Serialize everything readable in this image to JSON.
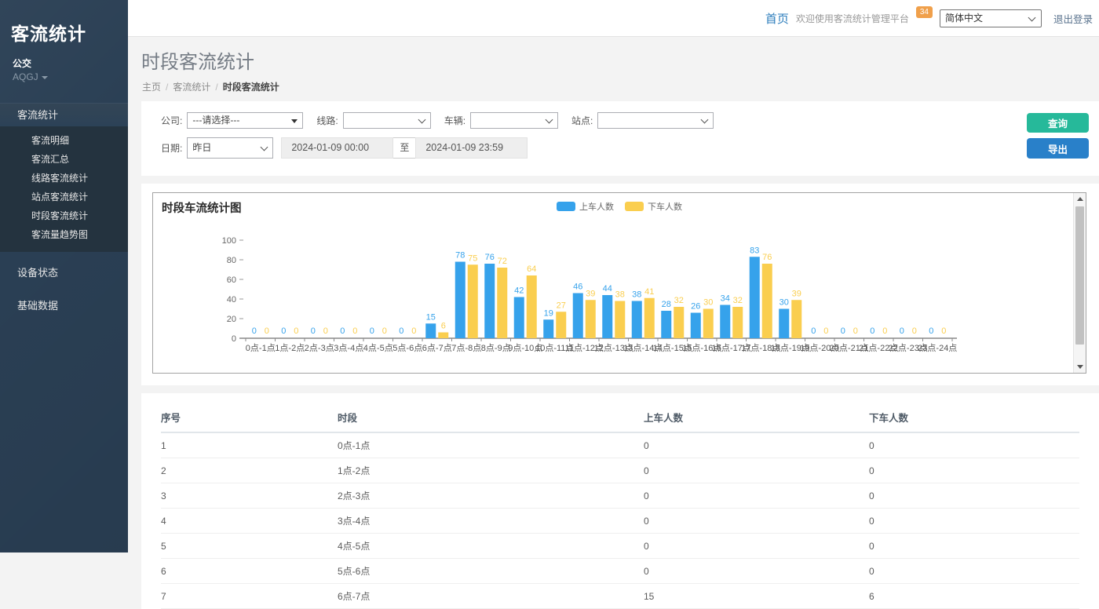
{
  "app": {
    "brand": "客流统计",
    "org": "公交",
    "org_code": "AQGJ"
  },
  "header": {
    "home": "首页",
    "welcome": "欢迎使用客流统计管理平台",
    "badge": "34",
    "language": "简体中文",
    "logout": "退出登录"
  },
  "sidebar": {
    "parent": {
      "label": "客流统计",
      "children": [
        "客流明细",
        "客流汇总",
        "线路客流统计",
        "站点客流统计",
        "时段客流统计",
        "客流量趋势图"
      ]
    },
    "roots": [
      "设备状态",
      "基础数据"
    ]
  },
  "page": {
    "title": "时段客流统计",
    "breadcrumb": [
      "主页",
      "客流统计",
      "时段客流统计"
    ]
  },
  "filters": {
    "company_label": "公司:",
    "company_value": "---请选择---",
    "line_label": "线路:",
    "line_value": "",
    "vehicle_label": "车辆:",
    "vehicle_value": "",
    "station_label": "站点:",
    "station_value": "",
    "date_label": "日期:",
    "date_preset": "昨日",
    "date_from": "2024-01-09 00:00",
    "date_separator": "至",
    "date_to": "2024-01-09 23:59",
    "query_button": "查询",
    "export_button": "导出"
  },
  "chart_data": {
    "type": "bar",
    "title": "时段车流统计图",
    "categories": [
      "0点-1点",
      "1点-2点",
      "2点-3点",
      "3点-4点",
      "4点-5点",
      "5点-6点",
      "6点-7点",
      "7点-8点",
      "8点-9点",
      "9点-10点",
      "10点-11点",
      "11点-12点",
      "12点-13点",
      "13点-14点",
      "14点-15点",
      "15点-16点",
      "16点-17点",
      "17点-18点",
      "18点-19点",
      "19点-20点",
      "20点-21点",
      "21点-22点",
      "22点-23点",
      "23点-24点"
    ],
    "series": [
      {
        "name": "上车人数",
        "color": "#36A2EB",
        "values": [
          0,
          0,
          0,
          0,
          0,
          0,
          15,
          78,
          76,
          42,
          19,
          46,
          44,
          38,
          28,
          26,
          34,
          83,
          30,
          0,
          0,
          0,
          0,
          0
        ]
      },
      {
        "name": "下车人数",
        "color": "#FACE4F",
        "values": [
          0,
          0,
          0,
          0,
          0,
          0,
          6,
          75,
          72,
          64,
          27,
          39,
          38,
          41,
          32,
          30,
          32,
          76,
          39,
          0,
          0,
          0,
          0,
          0
        ]
      }
    ],
    "xlabel": "",
    "ylabel": "",
    "ylim": [
      0,
      100
    ],
    "yticks": [
      0,
      20,
      40,
      60,
      80,
      100
    ],
    "grid": false,
    "legend_position": "top-center",
    "value_labels": true
  },
  "table": {
    "columns": [
      "序号",
      "时段",
      "上车人数",
      "下车人数"
    ],
    "rows": [
      [
        "1",
        "0点-1点",
        "0",
        "0"
      ],
      [
        "2",
        "1点-2点",
        "0",
        "0"
      ],
      [
        "3",
        "2点-3点",
        "0",
        "0"
      ],
      [
        "4",
        "3点-4点",
        "0",
        "0"
      ],
      [
        "5",
        "4点-5点",
        "0",
        "0"
      ],
      [
        "6",
        "5点-6点",
        "0",
        "0"
      ],
      [
        "7",
        "6点-7点",
        "15",
        "6"
      ]
    ]
  }
}
